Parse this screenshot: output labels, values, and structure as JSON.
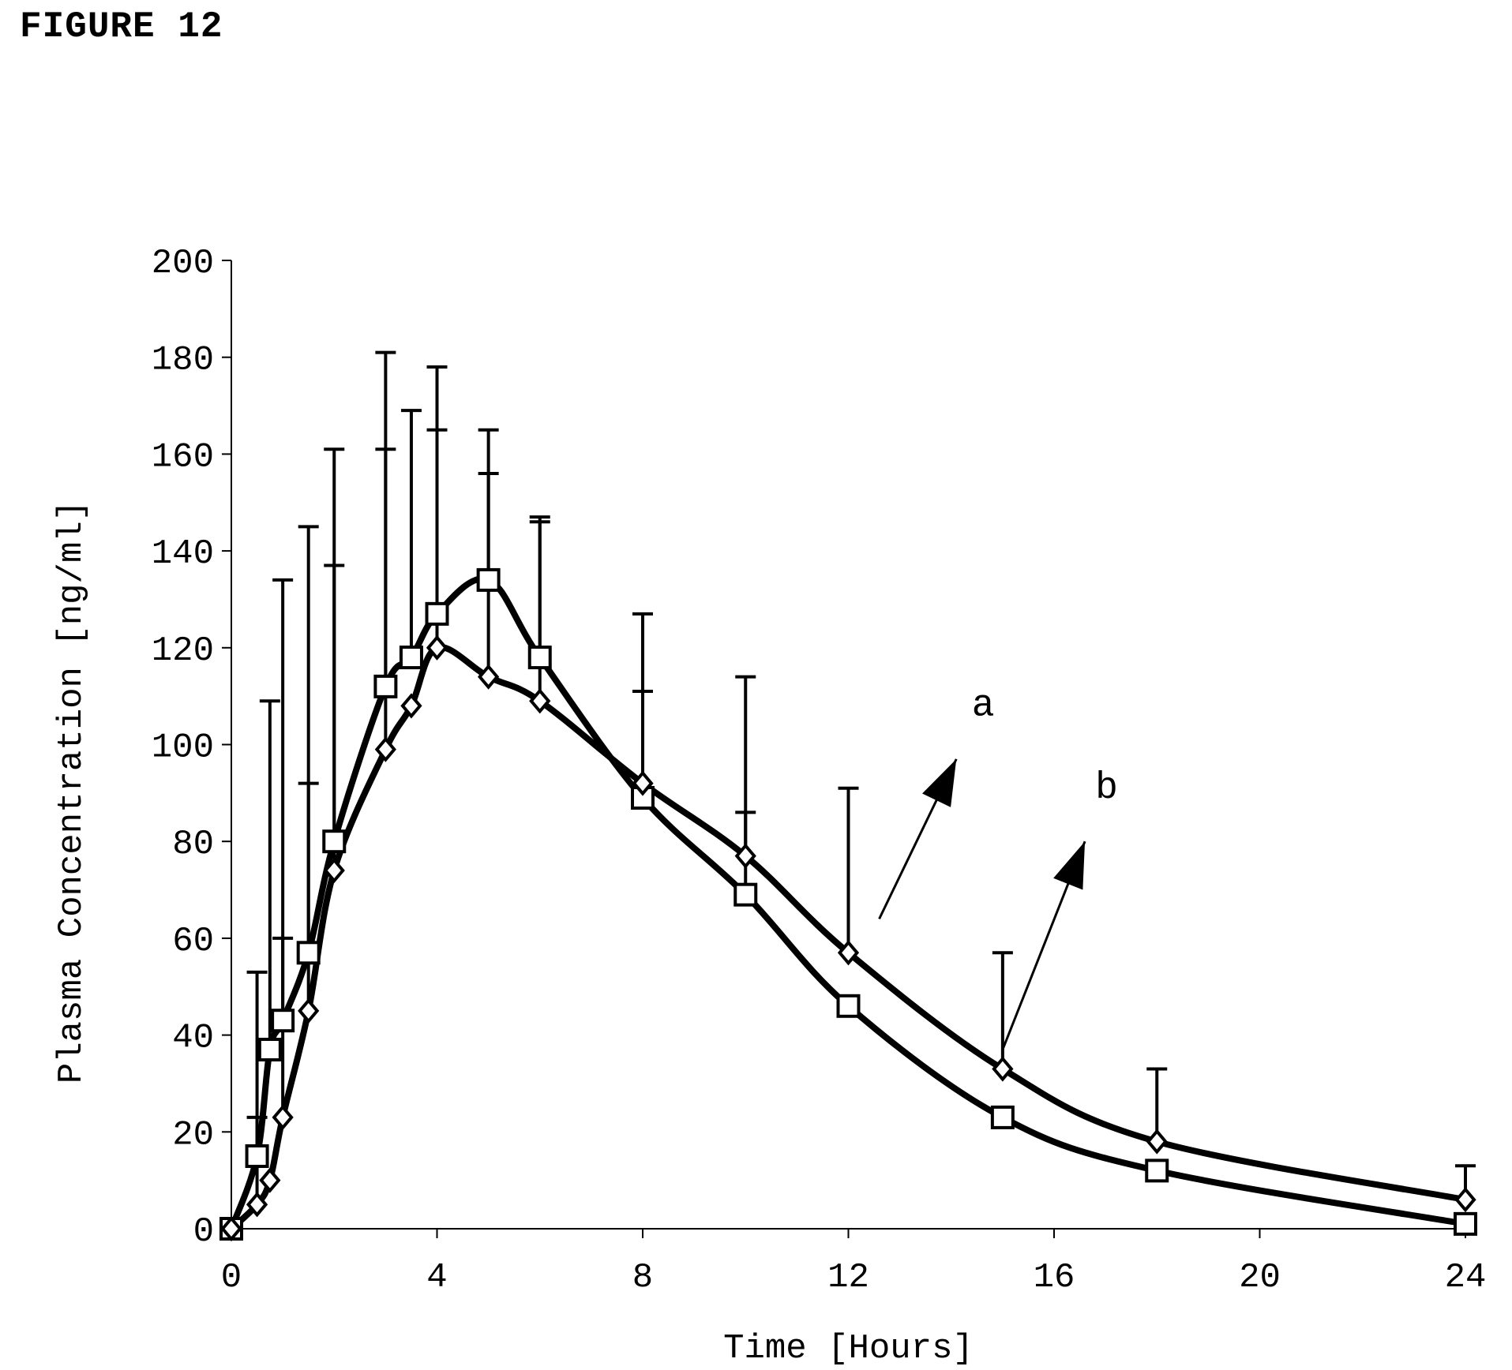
{
  "figure_label": "FIGURE 12",
  "chart_data": {
    "type": "line",
    "title": "",
    "xlabel": "Time [Hours]",
    "ylabel": "Plasma Concentration [ng/ml]",
    "xlim": [
      0,
      24
    ],
    "ylim": [
      0,
      200
    ],
    "xticks": [
      0,
      4,
      8,
      12,
      16,
      20,
      24
    ],
    "yticks": [
      0,
      20,
      40,
      60,
      80,
      100,
      120,
      140,
      160,
      180,
      200
    ],
    "grid": false,
    "legend": "none",
    "annotations": [
      {
        "text": "a",
        "points_to": "square series"
      },
      {
        "text": "b",
        "points_to": "diamond series"
      }
    ],
    "series": [
      {
        "marker": "square",
        "x": [
          0,
          0.5,
          0.75,
          1,
          1.5,
          2,
          3,
          3.5,
          4,
          5,
          6,
          8,
          10,
          12,
          15,
          18,
          24
        ],
        "y": [
          0,
          15,
          37,
          43,
          57,
          80,
          112,
          118,
          127,
          134,
          118,
          89,
          69,
          46,
          23,
          12,
          1
        ],
        "error_upper": [
          null,
          53,
          109,
          134,
          92,
          137,
          161,
          169,
          165,
          156,
          147,
          111,
          86,
          null,
          null,
          null,
          null
        ]
      },
      {
        "marker": "diamond",
        "x": [
          0,
          0.5,
          0.75,
          1,
          1.5,
          2,
          3,
          3.5,
          4,
          5,
          6,
          8,
          10,
          12,
          15,
          18,
          24
        ],
        "y": [
          0,
          5,
          10,
          23,
          45,
          74,
          99,
          108,
          120,
          114,
          109,
          92,
          77,
          57,
          33,
          18,
          6
        ],
        "error_upper": [
          null,
          23,
          null,
          60,
          145,
          161,
          181,
          null,
          178,
          165,
          146,
          127,
          114,
          91,
          57,
          33,
          13
        ]
      }
    ]
  }
}
